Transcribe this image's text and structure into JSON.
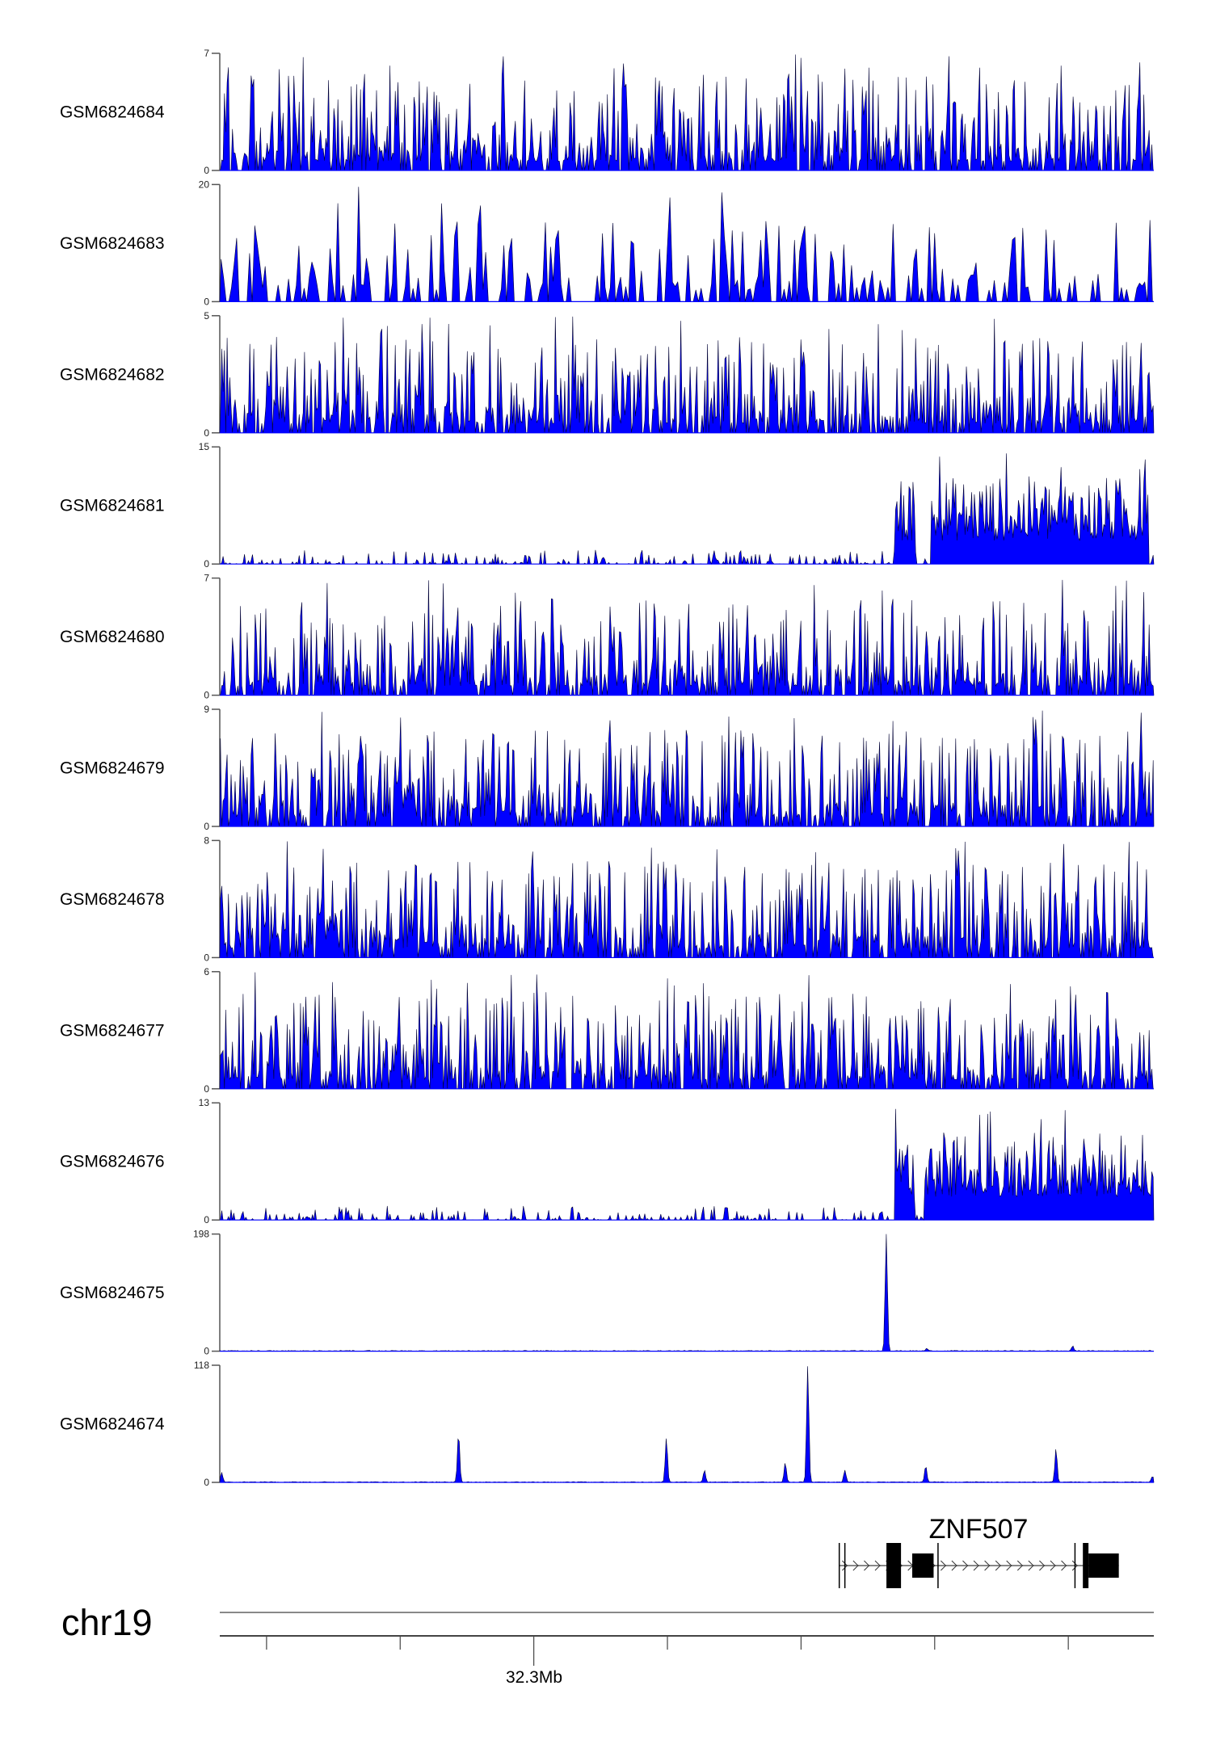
{
  "chart_data": {
    "type": "area",
    "title": "",
    "chromosome": "chr19",
    "xlabel": "32.3Mb",
    "xlim_mb": [
      32.2765,
      32.3464
    ],
    "x_ticks_mb": [
      32.28,
      32.29,
      32.3,
      32.31,
      32.32,
      32.33,
      32.34
    ],
    "x_tick_labels": {
      "32.3": "32.3Mb"
    },
    "color": "#0000FF",
    "outline_color": "#000033",
    "tracks": [
      {
        "name": "GSM6824684",
        "ymax": 7,
        "ymin_label": "0",
        "ymax_label": "7",
        "style": "dense",
        "seed": 11
      },
      {
        "name": "GSM6824683",
        "ymax": 20,
        "ymin_label": "0",
        "ymax_label": "20",
        "style": "sparse",
        "seed": 23
      },
      {
        "name": "GSM6824682",
        "ymax": 5,
        "ymin_label": "0",
        "ymax_label": "5",
        "style": "dense",
        "seed": 37
      },
      {
        "name": "GSM6824681",
        "ymax": 15,
        "ymin_label": "0",
        "ymax_label": "15",
        "style": "region",
        "seed": 41,
        "enriched_region_mb": [
          32.327,
          32.346
        ],
        "gap_mb": [
          32.3285,
          32.3297
        ]
      },
      {
        "name": "GSM6824680",
        "ymax": 7,
        "ymin_label": "0",
        "ymax_label": "7",
        "style": "dense",
        "seed": 53
      },
      {
        "name": "GSM6824679",
        "ymax": 9,
        "ymin_label": "0",
        "ymax_label": "9",
        "style": "dense",
        "seed": 61
      },
      {
        "name": "GSM6824678",
        "ymax": 8,
        "ymin_label": "0",
        "ymax_label": "8",
        "style": "dense",
        "seed": 71
      },
      {
        "name": "GSM6824677",
        "ymax": 6,
        "ymin_label": "0",
        "ymax_label": "6",
        "style": "dense",
        "seed": 83
      },
      {
        "name": "GSM6824676",
        "ymax": 13,
        "ymin_label": "0",
        "ymax_label": "13",
        "style": "region",
        "seed": 97,
        "enriched_region_mb": [
          32.327,
          32.3464
        ],
        "gap_mb": [
          32.3285,
          32.3292
        ]
      },
      {
        "name": "GSM6824675",
        "ymax": 198,
        "ymin_label": "0",
        "ymax_label": "198",
        "style": "peaks",
        "seed": 101,
        "peaks": [
          {
            "mb": 32.32638,
            "value": 198
          },
          {
            "mb": 32.32941,
            "value": 4
          },
          {
            "mb": 32.34033,
            "value": 8
          }
        ]
      },
      {
        "name": "GSM6824674",
        "ymax": 118,
        "ymin_label": "0",
        "ymax_label": "118",
        "style": "peaks",
        "seed": 113,
        "peaks": [
          {
            "mb": 32.27664,
            "value": 10
          },
          {
            "mb": 32.29437,
            "value": 50
          },
          {
            "mb": 32.30992,
            "value": 45
          },
          {
            "mb": 32.31277,
            "value": 12
          },
          {
            "mb": 32.31882,
            "value": 20
          },
          {
            "mb": 32.3205,
            "value": 118
          },
          {
            "mb": 32.32328,
            "value": 12
          },
          {
            "mb": 32.32933,
            "value": 17
          },
          {
            "mb": 32.33908,
            "value": 34
          },
          {
            "mb": 32.3463,
            "value": 6
          }
        ]
      }
    ],
    "gene": {
      "name": "ZNF507",
      "strand": "+",
      "start_mb": 32.32286,
      "end_mb": 32.34378,
      "marks_mb": [
        32.32286,
        32.32328,
        32.33025,
        32.3405
      ],
      "exons": [
        {
          "start_mb": 32.32639,
          "end_mb": 32.32748,
          "type": "cds"
        },
        {
          "start_mb": 32.32832,
          "end_mb": 32.32992,
          "type": "utr"
        },
        {
          "start_mb": 32.34109,
          "end_mb": 32.34151,
          "type": "cds"
        },
        {
          "start_mb": 32.34151,
          "end_mb": 32.34378,
          "type": "utr"
        }
      ]
    }
  }
}
